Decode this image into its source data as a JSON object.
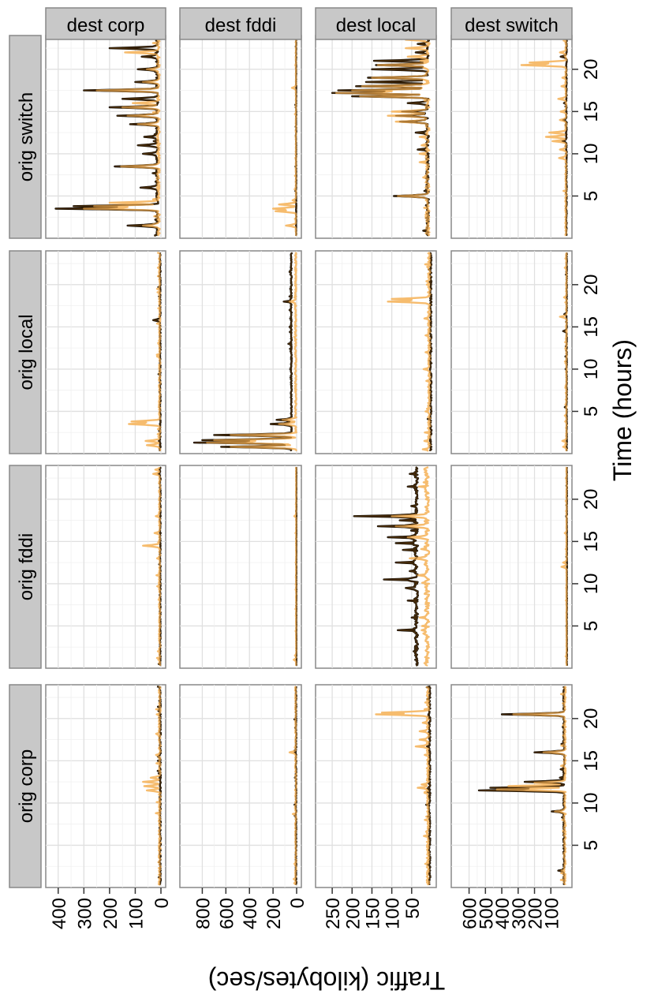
{
  "chart_data": {
    "type": "line",
    "orientation": "rotated-90-clockwise",
    "xlabel": "Time (hours)",
    "ylabel": "Traffic (kilobytes/sec)",
    "x_ticks": [
      5,
      10,
      15,
      20
    ],
    "x_range": [
      0,
      24
    ],
    "grid": true,
    "colors": {
      "black_series": "#000000",
      "orange_series": "#F5B866",
      "overlap": "#7a4a10",
      "strip_bg": "#c8c8c8",
      "grid": "#e8e8e8",
      "border": "#888888"
    },
    "origins": [
      "orig corp",
      "orig fddi",
      "orig local",
      "orig switch"
    ],
    "dests": [
      {
        "label": "dest corp",
        "ymax": 430,
        "ticks": [
          "400",
          "300",
          "200",
          "100",
          "0"
        ],
        "tick_values": [
          400,
          300,
          200,
          100,
          0
        ]
      },
      {
        "label": "dest fddi",
        "ymax": 950,
        "ticks": [
          "800",
          "600",
          "400",
          "200",
          "0"
        ],
        "tick_values": [
          800,
          600,
          400,
          200,
          0
        ]
      },
      {
        "label": "dest local",
        "ymax": 280,
        "ticks": [
          "250",
          "200",
          "150",
          "100",
          "50"
        ],
        "tick_values": [
          250,
          200,
          150,
          100,
          50
        ]
      },
      {
        "label": "dest switch",
        "ymax": 680,
        "ticks": [
          "600",
          "500",
          "400",
          "300",
          "200",
          "100"
        ],
        "tick_values": [
          600,
          500,
          400,
          300,
          200,
          100
        ]
      }
    ],
    "panels": [
      {
        "orig": "orig corp",
        "dest": "dest corp",
        "base_black": 3,
        "base_orange": 5,
        "noise": 8,
        "black": [
          [
            15.5,
            12
          ]
        ],
        "orange": [
          [
            11.5,
            55
          ],
          [
            12,
            65
          ],
          [
            12.5,
            70
          ],
          [
            13,
            40
          ],
          [
            3,
            10
          ],
          [
            20,
            8
          ]
        ]
      },
      {
        "orig": "orig corp",
        "dest": "dest fddi",
        "base_black": 5,
        "base_orange": 8,
        "noise": 10,
        "black": [
          [
            16,
            15
          ]
        ],
        "orange": [
          [
            16,
            60
          ],
          [
            1,
            25
          ],
          [
            0.5,
            20
          ]
        ]
      },
      {
        "orig": "orig corp",
        "dest": "dest local",
        "base_black": 5,
        "base_orange": 9,
        "noise": 6,
        "black": [
          [
            20.5,
            8
          ]
        ],
        "orange": [
          [
            20.5,
            140
          ],
          [
            20.7,
            125
          ],
          [
            11.8,
            35
          ],
          [
            12.2,
            25
          ],
          [
            16.7,
            40
          ],
          [
            17.5,
            30
          ],
          [
            18.5,
            30
          ],
          [
            19.5,
            22
          ],
          [
            1,
            10
          ]
        ]
      },
      {
        "orig": "orig corp",
        "dest": "dest switch",
        "base_black": 20,
        "base_orange": 15,
        "noise": 12,
        "black": [
          [
            11.5,
            540
          ],
          [
            11.8,
            470
          ],
          [
            12.5,
            260
          ],
          [
            20.5,
            400
          ],
          [
            16,
            200
          ],
          [
            9,
            95
          ],
          [
            2,
            55
          ],
          [
            1,
            25
          ],
          [
            14,
            40
          ],
          [
            17,
            35
          ],
          [
            13,
            45
          ],
          [
            19,
            28
          ]
        ],
        "orange": [
          [
            11.6,
            430
          ],
          [
            12,
            360
          ],
          [
            20.5,
            330
          ],
          [
            16,
            145
          ],
          [
            9,
            75
          ],
          [
            12.4,
            200
          ],
          [
            2,
            35
          ],
          [
            8,
            30
          ],
          [
            18,
            25
          ]
        ]
      },
      {
        "orig": "orig fddi",
        "dest": "dest corp",
        "base_black": 3,
        "base_orange": 5,
        "noise": 6,
        "black": [
          [
            23,
            10
          ]
        ],
        "orange": [
          [
            14.5,
            70
          ],
          [
            16,
            25
          ],
          [
            18,
            20
          ],
          [
            23,
            30
          ],
          [
            23.5,
            22
          ],
          [
            1,
            10
          ],
          [
            2,
            12
          ],
          [
            10.5,
            8
          ]
        ]
      },
      {
        "orig": "orig fddi",
        "dest": "dest fddi",
        "base_black": 2,
        "base_orange": 4,
        "noise": 3,
        "black": [],
        "orange": [
          [
            1,
            25
          ],
          [
            1.5,
            15
          ],
          [
            18,
            20
          ]
        ]
      },
      {
        "orig": "orig fddi",
        "dest": "dest local",
        "base_black": 38,
        "base_orange": 12,
        "noise": 12,
        "black": [
          [
            18,
            195
          ],
          [
            16.8,
            135
          ],
          [
            15.5,
            110
          ],
          [
            14.8,
            90
          ],
          [
            10.5,
            120
          ],
          [
            12.5,
            90
          ],
          [
            14,
            72
          ],
          [
            4.5,
            85
          ],
          [
            9.5,
            65
          ],
          [
            8,
            60
          ],
          [
            17.5,
            80
          ],
          [
            21.5,
            60
          ],
          [
            23,
            55
          ],
          [
            6,
            50
          ],
          [
            2,
            45
          ],
          [
            11.5,
            55
          ]
        ],
        "orange": [
          [
            18,
            100
          ],
          [
            16.8,
            90
          ],
          [
            13,
            55
          ],
          [
            15.5,
            60
          ],
          [
            6,
            30
          ],
          [
            11,
            35
          ],
          [
            4.5,
            25
          ],
          [
            22,
            20
          ],
          [
            23.5,
            18
          ]
        ]
      },
      {
        "orig": "orig fddi",
        "dest": "dest switch",
        "base_black": 2,
        "base_orange": 4,
        "noise": 3,
        "black": [],
        "orange": [
          [
            12,
            35
          ],
          [
            12.5,
            25
          ],
          [
            16,
            15
          ]
        ]
      },
      {
        "orig": "orig local",
        "dest": "dest corp",
        "base_black": 3,
        "base_orange": 5,
        "noise": 6,
        "black": [
          [
            15.8,
            30
          ],
          [
            1.5,
            8
          ]
        ],
        "orange": [
          [
            3.5,
            125
          ],
          [
            3.8,
            115
          ],
          [
            1.5,
            60
          ],
          [
            1,
            55
          ],
          [
            11.5,
            15
          ],
          [
            13,
            10
          ],
          [
            19.5,
            15
          ],
          [
            22,
            12
          ]
        ]
      },
      {
        "orig": "orig local",
        "dest": "dest fddi",
        "base_black": 45,
        "base_orange": 8,
        "noise": 12,
        "black": [
          [
            1.3,
            870
          ],
          [
            1.6,
            800
          ],
          [
            0.8,
            640
          ],
          [
            2.2,
            700
          ],
          [
            3.5,
            220
          ],
          [
            4,
            170
          ],
          [
            18,
            110
          ],
          [
            13,
            70
          ],
          [
            15,
            60
          ],
          [
            16,
            55
          ],
          [
            17,
            60
          ],
          [
            19.5,
            55
          ],
          [
            22,
            50
          ],
          [
            10,
            55
          ],
          [
            9,
            52
          ]
        ],
        "orange": [
          [
            1.3,
            760
          ],
          [
            1.6,
            700
          ],
          [
            0.8,
            560
          ],
          [
            2.2,
            560
          ],
          [
            3.5,
            150
          ],
          [
            4,
            120
          ],
          [
            18,
            60
          ]
        ]
      },
      {
        "orig": "orig local",
        "dest": "dest local",
        "base_black": 2,
        "base_orange": 6,
        "noise": 6,
        "black": [
          [
            11,
            5
          ]
        ],
        "orange": [
          [
            18,
            110
          ],
          [
            18.3,
            100
          ],
          [
            0.5,
            22
          ],
          [
            1.5,
            18
          ],
          [
            5,
            15
          ],
          [
            10,
            20
          ],
          [
            12,
            15
          ],
          [
            14,
            15
          ],
          [
            16,
            18
          ],
          [
            20,
            12
          ]
        ]
      },
      {
        "orig": "orig local",
        "dest": "dest switch",
        "base_black": 3,
        "base_orange": 5,
        "noise": 5,
        "black": [
          [
            14.5,
            25
          ],
          [
            16.5,
            18
          ],
          [
            5.5,
            15
          ],
          [
            10,
            10
          ]
        ],
        "orange": [
          [
            16.2,
            45
          ],
          [
            1.5,
            30
          ],
          [
            0.8,
            25
          ],
          [
            4.5,
            15
          ],
          [
            18.5,
            20
          ],
          [
            22,
            15
          ]
        ]
      },
      {
        "orig": "orig switch",
        "dest": "dest corp",
        "base_black": 15,
        "base_orange": 10,
        "noise": 12,
        "black": [
          [
            3.5,
            410
          ],
          [
            3.8,
            340
          ],
          [
            1.5,
            130
          ],
          [
            17.5,
            300
          ],
          [
            15.5,
            200
          ],
          [
            8.5,
            180
          ],
          [
            14.5,
            170
          ],
          [
            13.5,
            120
          ],
          [
            11,
            90
          ],
          [
            16.5,
            150
          ],
          [
            22.5,
            200
          ],
          [
            18.5,
            100
          ],
          [
            20,
            90
          ],
          [
            6,
            80
          ],
          [
            10,
            70
          ],
          [
            12,
            65
          ],
          [
            21.5,
            75
          ]
        ],
        "orange": [
          [
            3.5,
            300
          ],
          [
            3.8,
            260
          ],
          [
            4.2,
            200
          ],
          [
            1.5,
            70
          ],
          [
            17.5,
            250
          ],
          [
            15.5,
            150
          ],
          [
            8.5,
            155
          ],
          [
            14.5,
            130
          ],
          [
            16,
            110
          ],
          [
            13.5,
            90
          ],
          [
            22,
            140
          ],
          [
            18.5,
            70
          ],
          [
            20,
            55
          ]
        ]
      },
      {
        "orig": "orig switch",
        "dest": "dest fddi",
        "base_black": 4,
        "base_orange": 6,
        "noise": 5,
        "black": [],
        "orange": [
          [
            3.5,
            200
          ],
          [
            3.2,
            180
          ],
          [
            4,
            150
          ],
          [
            1.5,
            90
          ],
          [
            17.8,
            40
          ],
          [
            4.5,
            35
          ]
        ]
      },
      {
        "orig": "orig switch",
        "dest": "dest local",
        "base_black": 10,
        "base_orange": 10,
        "noise": 10,
        "black": [
          [
            17.2,
            250
          ],
          [
            17.5,
            235
          ],
          [
            16.8,
            200
          ],
          [
            18,
            190
          ],
          [
            18.5,
            165
          ],
          [
            19,
            160
          ],
          [
            20,
            150
          ],
          [
            21,
            145
          ],
          [
            20.5,
            140
          ],
          [
            22,
            40
          ],
          [
            23,
            35
          ],
          [
            5,
            95
          ],
          [
            14.5,
            90
          ],
          [
            13.8,
            80
          ],
          [
            15,
            75
          ],
          [
            16,
            60
          ],
          [
            10.5,
            35
          ],
          [
            12.5,
            40
          ]
        ],
        "orange": [
          [
            17.2,
            240
          ],
          [
            17.5,
            200
          ],
          [
            16.8,
            180
          ],
          [
            18,
            175
          ],
          [
            19,
            150
          ],
          [
            20.5,
            135
          ],
          [
            21.5,
            60
          ],
          [
            22.5,
            65
          ],
          [
            23.5,
            65
          ],
          [
            14.5,
            110
          ],
          [
            13.8,
            90
          ],
          [
            15,
            100
          ],
          [
            5,
            85
          ],
          [
            9,
            30
          ],
          [
            10,
            30
          ],
          [
            11,
            25
          ],
          [
            12,
            30
          ]
        ]
      },
      {
        "orig": "orig switch",
        "dest": "dest switch",
        "base_black": 5,
        "base_orange": 8,
        "noise": 8,
        "black": [
          [
            11.5,
            30
          ],
          [
            14,
            25
          ],
          [
            16,
            20
          ],
          [
            21.5,
            40
          ]
        ],
        "orange": [
          [
            20.5,
            280
          ],
          [
            20.8,
            230
          ],
          [
            12,
            130
          ],
          [
            12.5,
            110
          ],
          [
            11.5,
            90
          ],
          [
            9.5,
            50
          ],
          [
            10.5,
            45
          ],
          [
            14,
            45
          ],
          [
            15,
            40
          ],
          [
            16.5,
            55
          ],
          [
            18,
            35
          ],
          [
            19,
            30
          ],
          [
            22,
            45
          ]
        ]
      }
    ]
  }
}
